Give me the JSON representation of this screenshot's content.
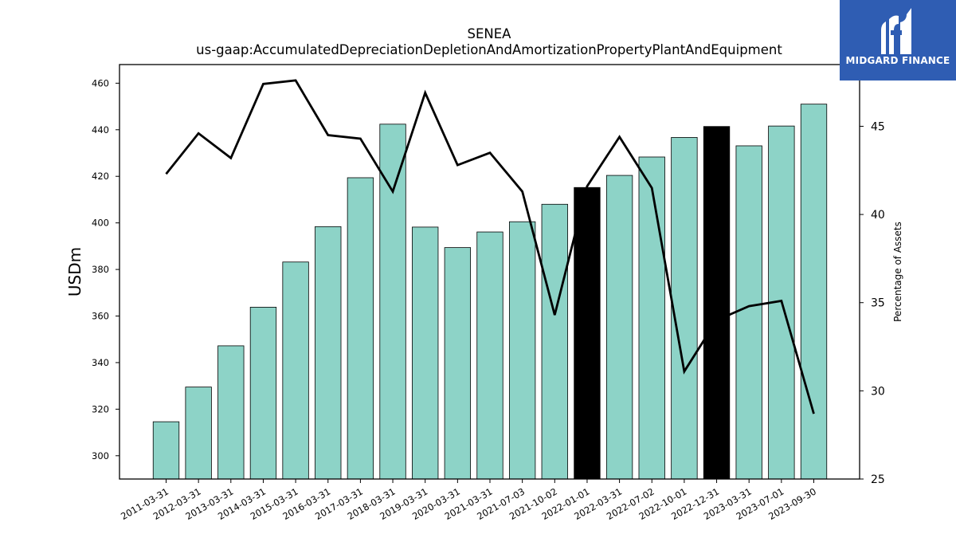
{
  "chart_data": {
    "type": "bar",
    "title": "SENEA",
    "subtitle": "us-gaap:AccumulatedDepreciationDepletionAndAmortizationPropertyPlantAndEquipment",
    "xlabel": "",
    "ylabel": "USDm",
    "y2label": "Percentage of Assets",
    "ylim": [
      290,
      468
    ],
    "y2lim": [
      25,
      48.5
    ],
    "yticks": [
      300,
      320,
      340,
      360,
      380,
      400,
      420,
      440,
      460
    ],
    "y2ticks": [
      25,
      30,
      35,
      40,
      45
    ],
    "categories": [
      "2011-03-31",
      "2012-03-31",
      "2013-03-31",
      "2014-03-31",
      "2015-03-31",
      "2016-03-31",
      "2017-03-31",
      "2018-03-31",
      "2019-03-31",
      "2020-03-31",
      "2021-03-31",
      "2021-07-03",
      "2021-10-02",
      "2022-01-01",
      "2022-03-31",
      "2022-07-02",
      "2022-10-01",
      "2022-12-31",
      "2023-03-31",
      "2023-07-01",
      "2023-09-30"
    ],
    "series": [
      {
        "kind": "bar",
        "axis": "left",
        "values": [
          314.6,
          329.5,
          347.2,
          363.8,
          383.2,
          398.4,
          419.4,
          442.4,
          398.2,
          389.4,
          396.1,
          400.5,
          408.0,
          415.2,
          420.4,
          428.3,
          436.7,
          441.4,
          433.1,
          441.6,
          451.0
        ],
        "highlight": [
          13,
          17
        ]
      },
      {
        "kind": "line",
        "axis": "right",
        "values": [
          42.3,
          44.6,
          43.2,
          47.4,
          47.6,
          44.5,
          44.3,
          41.3,
          46.9,
          42.8,
          43.5,
          41.3,
          34.3,
          41.6,
          44.4,
          41.5,
          31.1,
          34.0,
          34.8,
          35.1,
          28.7
        ]
      }
    ],
    "colors": {
      "bar": "#8dd3c7",
      "highlight": "#000000",
      "line": "#000000",
      "edge": "#000000"
    },
    "legend": "none",
    "grid": false
  },
  "logo": {
    "text": "MIDGARD FINANCE",
    "background": "#2f5db3",
    "icon": "midgard-logo-icon"
  }
}
